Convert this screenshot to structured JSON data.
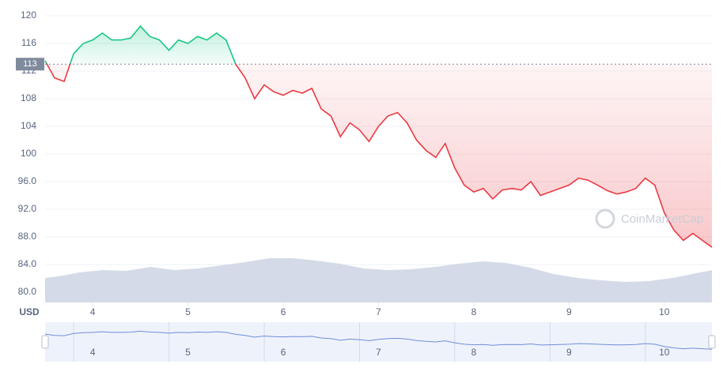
{
  "chart_data": {
    "type": "line",
    "x": [
      3.5,
      3.6,
      3.7,
      3.8,
      3.9,
      4.0,
      4.1,
      4.2,
      4.3,
      4.4,
      4.5,
      4.6,
      4.7,
      4.8,
      4.9,
      5.0,
      5.1,
      5.2,
      5.3,
      5.4,
      5.5,
      5.6,
      5.7,
      5.8,
      5.9,
      6.0,
      6.1,
      6.2,
      6.3,
      6.4,
      6.5,
      6.6,
      6.7,
      6.8,
      6.9,
      7.0,
      7.1,
      7.2,
      7.3,
      7.4,
      7.5,
      7.6,
      7.7,
      7.8,
      7.9,
      8.0,
      8.1,
      8.2,
      8.3,
      8.4,
      8.5,
      8.6,
      8.7,
      8.8,
      8.9,
      9.0,
      9.1,
      9.2,
      9.3,
      9.4,
      9.5,
      9.6,
      9.7,
      9.8,
      9.9,
      10.0,
      10.1,
      10.2,
      10.3,
      10.4,
      10.5
    ],
    "values": [
      113.5,
      111,
      110.5,
      114.5,
      116,
      116.5,
      117.5,
      116.5,
      116.5,
      116.8,
      118.5,
      117,
      116.5,
      115,
      116.5,
      116,
      117,
      116.5,
      117.5,
      116.5,
      113,
      111,
      108,
      110,
      109,
      108.5,
      109.2,
      108.8,
      109.5,
      106.5,
      105.5,
      102.5,
      104.5,
      103.5,
      101.8,
      104,
      105.5,
      106,
      104.5,
      102,
      100.5,
      99.5,
      101.5,
      98,
      95.5,
      94.5,
      95,
      93.5,
      94.8,
      95,
      94.8,
      96,
      94,
      94.5,
      95,
      95.5,
      96.5,
      96.2,
      95.5,
      94.7,
      94.2,
      94.5,
      95,
      96.5,
      95.5,
      91.5,
      89,
      87.5,
      88.5,
      87.5,
      86.5
    ],
    "up_color": "#16c784",
    "down_color": "#ea3943",
    "reference": {
      "value": 113,
      "label": "113"
    },
    "xlim": [
      3.5,
      10.5
    ],
    "xticks": [
      4,
      5,
      6,
      7,
      8,
      9,
      10
    ],
    "ylim": [
      78.5,
      120.5
    ],
    "yticks": [
      120,
      116,
      112,
      108,
      104,
      100,
      {
        "value": 96,
        "label": "96.0"
      },
      {
        "value": 92,
        "label": "92.0"
      },
      {
        "value": 88,
        "label": "88.0"
      },
      {
        "value": 84,
        "label": "84.0"
      },
      {
        "value": 80,
        "label": "80.0"
      }
    ],
    "grid": true,
    "currency": "USD",
    "watermark": "CoinMarketCap"
  }
}
